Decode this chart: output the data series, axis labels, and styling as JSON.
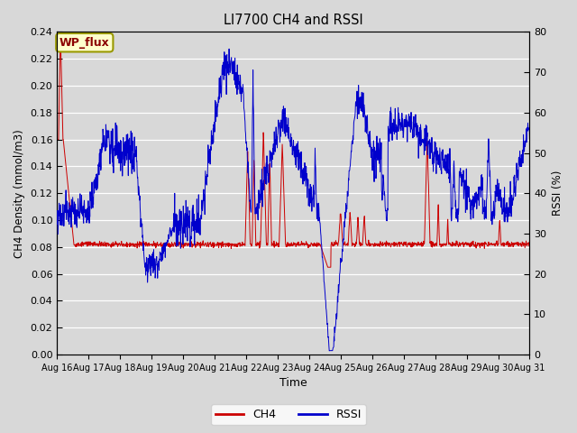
{
  "title": "LI7700 CH4 and RSSI",
  "xlabel": "Time",
  "ylabel_left": "CH4 Density (mmol/m3)",
  "ylabel_right": "RSSI (%)",
  "ylim_left": [
    0.0,
    0.24
  ],
  "ylim_right": [
    0,
    80
  ],
  "yticks_left": [
    0.0,
    0.02,
    0.04,
    0.06,
    0.08,
    0.1,
    0.12,
    0.14,
    0.16,
    0.18,
    0.2,
    0.22,
    0.24
  ],
  "yticks_right": [
    0,
    10,
    20,
    30,
    40,
    50,
    60,
    70,
    80
  ],
  "x_labels": [
    "Aug 16",
    "Aug 17",
    "Aug 18",
    "Aug 19",
    "Aug 20",
    "Aug 21",
    "Aug 22",
    "Aug 23",
    "Aug 24",
    "Aug 25",
    "Aug 26",
    "Aug 27",
    "Aug 28",
    "Aug 29",
    "Aug 30",
    "Aug 31"
  ],
  "fig_facecolor": "#d8d8d8",
  "plot_facecolor": "#d8d8d8",
  "ch4_color": "#cc0000",
  "rssi_color": "#0000cc",
  "annotation_text": "WP_flux",
  "legend_ch4": "CH4",
  "legend_rssi": "RSSI",
  "grid_color": "#ffffff",
  "figsize": [
    6.4,
    4.8
  ],
  "dpi": 100
}
